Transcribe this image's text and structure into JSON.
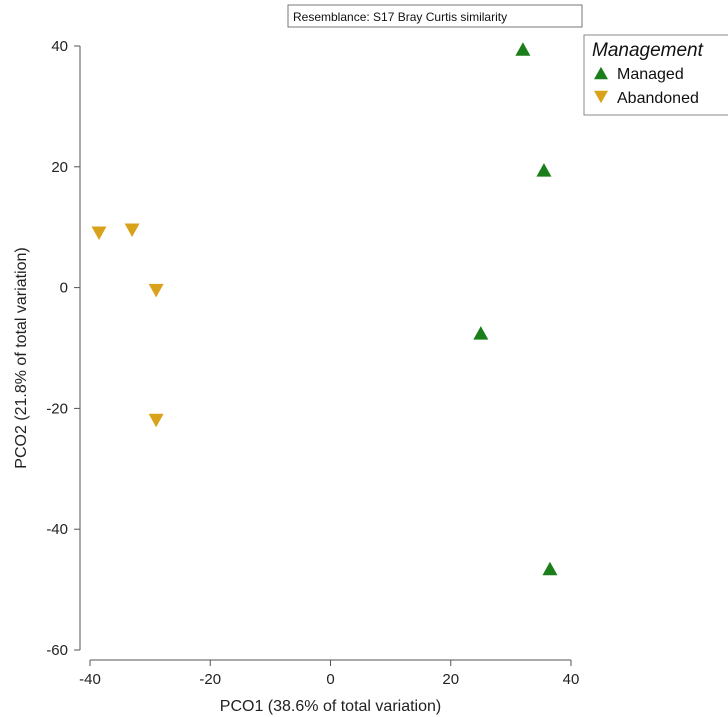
{
  "chart_data": {
    "type": "scatter",
    "subtitle": "Resemblance: S17 Bray Curtis similarity",
    "xlabel": "PCO1 (38.6% of total variation)",
    "ylabel": "PCO2 (21.8% of total variation)",
    "xlim": [
      -40,
      40
    ],
    "ylim": [
      -60,
      40
    ],
    "xticks": [
      -40,
      -20,
      0,
      20,
      40
    ],
    "yticks": [
      -60,
      -40,
      -20,
      0,
      20,
      40
    ],
    "grid": false,
    "legend": {
      "title": "Management",
      "placement": "top-right"
    },
    "series": [
      {
        "name": "Managed",
        "marker": "triangle-up",
        "color": "#1a7f1a",
        "points": [
          {
            "x": 32,
            "y": 39.5
          },
          {
            "x": 35.5,
            "y": 19.5
          },
          {
            "x": 25,
            "y": -7.5
          },
          {
            "x": 36.5,
            "y": -46.5
          }
        ]
      },
      {
        "name": "Abandoned",
        "marker": "triangle-down",
        "color": "#d9a21b",
        "points": [
          {
            "x": -38.5,
            "y": 9
          },
          {
            "x": -33,
            "y": 9.5
          },
          {
            "x": -29,
            "y": -0.5
          },
          {
            "x": -29,
            "y": -22
          }
        ]
      }
    ]
  }
}
